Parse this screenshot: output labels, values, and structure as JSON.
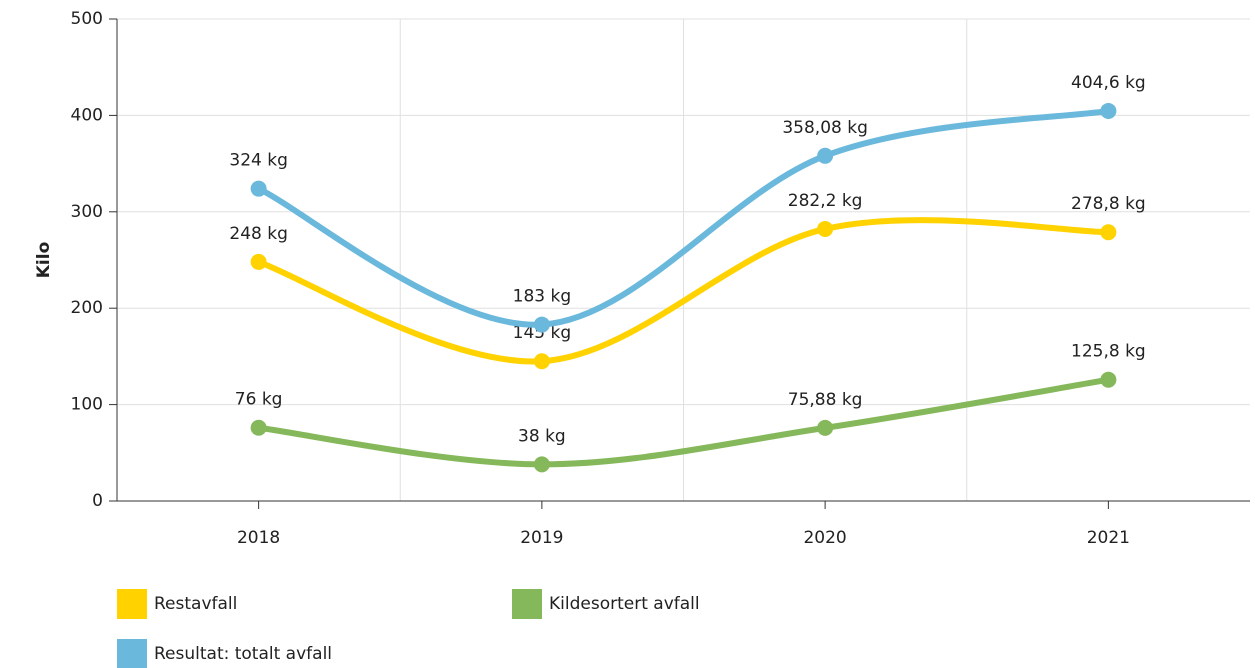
{
  "chart_data": {
    "type": "line",
    "y_label": "Kilo",
    "categories": [
      "2018",
      "2019",
      "2020",
      "2021"
    ],
    "series": [
      {
        "name": "Restavfall",
        "color": "#ffd200",
        "values": [
          248,
          145,
          282.2,
          278.8
        ],
        "value_labels": [
          "248 kg",
          "145 kg",
          "282,2 kg",
          "278,8 kg"
        ]
      },
      {
        "name": "Kildesortert avfall",
        "color": "#85b85a",
        "values": [
          76,
          38,
          75.88,
          125.8
        ],
        "value_labels": [
          "76 kg",
          "38 kg",
          "75,88 kg",
          "125,8 kg"
        ]
      },
      {
        "name": "Resultat: totalt avfall",
        "color": "#6ab8dc",
        "values": [
          324,
          183,
          358.08,
          404.6
        ],
        "value_labels": [
          "324 kg",
          "183 kg",
          "358,08 kg",
          "404,6 kg"
        ]
      }
    ],
    "ylim": [
      0,
      500
    ],
    "yticks": [
      0,
      100,
      200,
      300,
      400,
      500
    ],
    "grid": true
  }
}
